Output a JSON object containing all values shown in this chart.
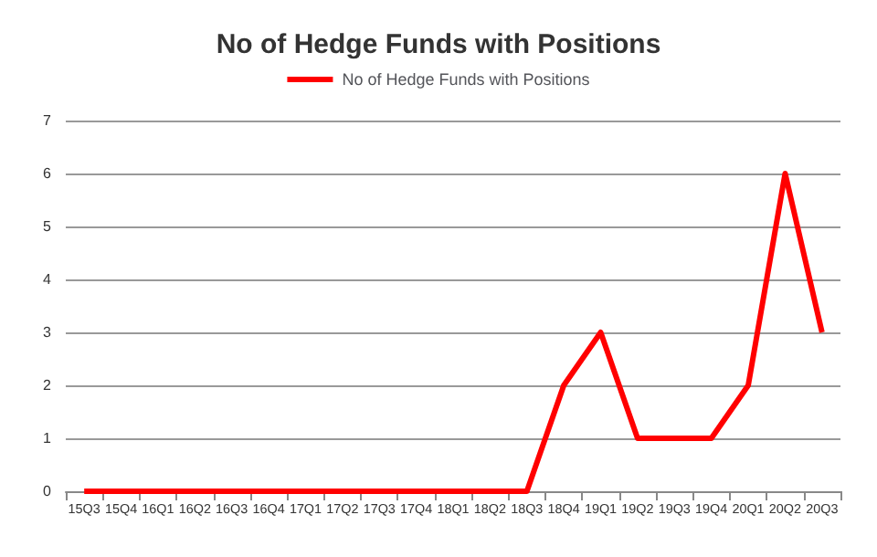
{
  "chart_data": {
    "type": "line",
    "title": "No of Hedge Funds with Positions",
    "categories": [
      "15Q3",
      "15Q4",
      "16Q1",
      "16Q2",
      "16Q3",
      "16Q4",
      "17Q1",
      "17Q2",
      "17Q3",
      "17Q4",
      "18Q1",
      "18Q2",
      "18Q3",
      "18Q4",
      "19Q1",
      "19Q2",
      "19Q3",
      "19Q4",
      "20Q1",
      "20Q2",
      "20Q3"
    ],
    "series": [
      {
        "name": "No of Hedge Funds with Positions",
        "color": "#ff0000",
        "values": [
          0,
          0,
          0,
          0,
          0,
          0,
          0,
          0,
          0,
          0,
          0,
          0,
          0,
          2,
          3,
          1,
          1,
          1,
          2,
          6,
          3
        ]
      }
    ],
    "ylim": [
      0,
      7
    ],
    "yticks": [
      0,
      1,
      2,
      3,
      4,
      5,
      6,
      7
    ],
    "grid": "y",
    "legend": "top",
    "marker": "none",
    "line_style": "solid"
  }
}
